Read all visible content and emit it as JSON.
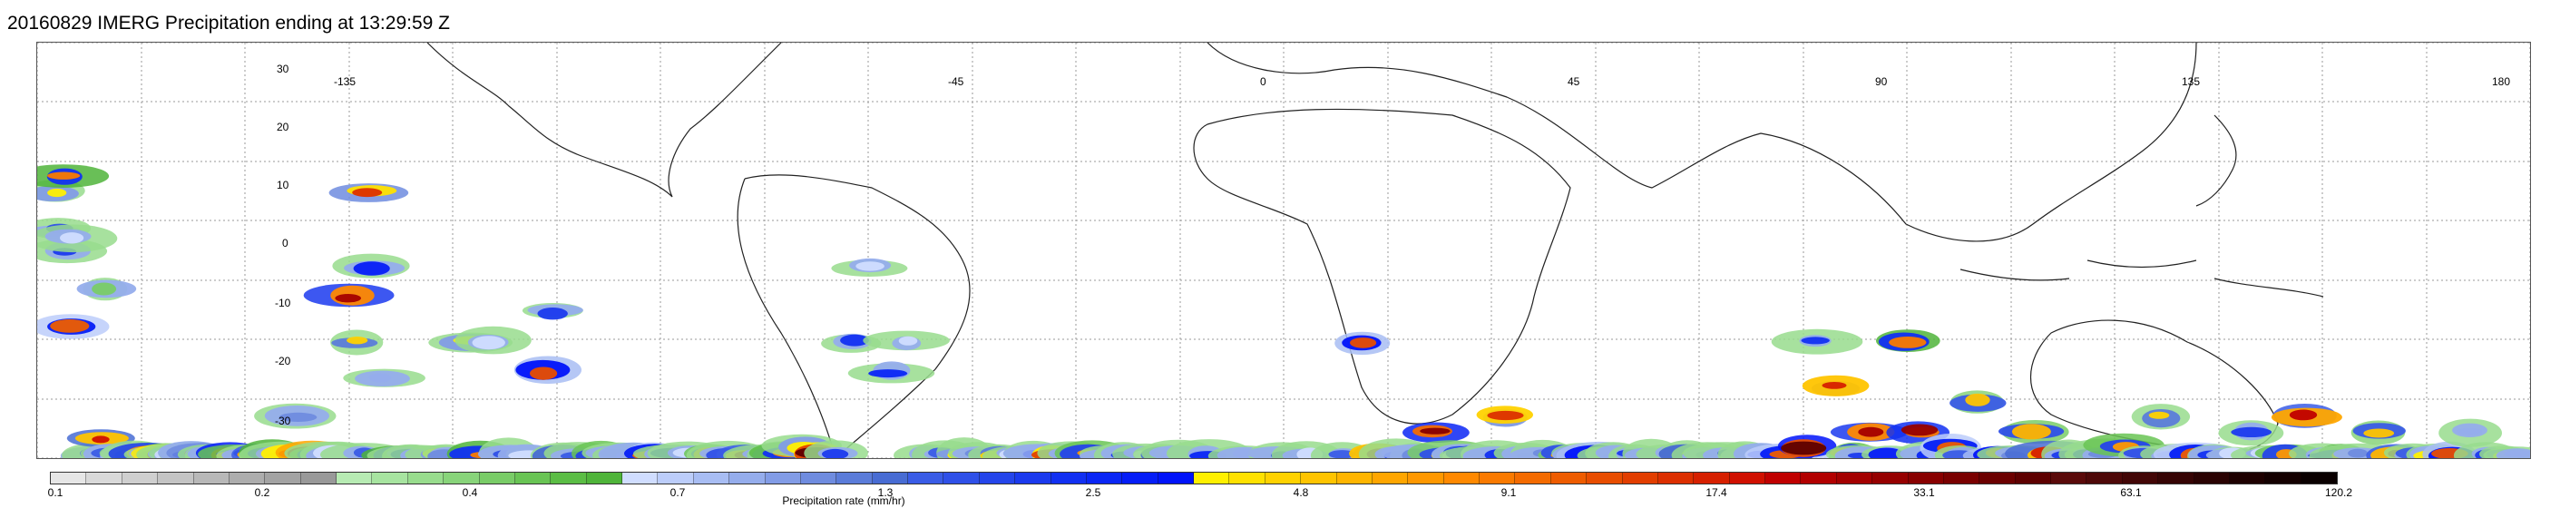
{
  "title": "20160829 IMERG Precipitation ending at 13:29:59 Z",
  "map": {
    "lon_labels": [
      "-135",
      "-45",
      "0",
      "45",
      "90",
      "135",
      "180"
    ],
    "lat_labels": [
      "30",
      "20",
      "10",
      "0",
      "-10",
      "-20",
      "-30"
    ],
    "precip_cells": [
      [
        20,
        20,
        1.4
      ],
      [
        22,
        25,
        0.8
      ],
      [
        30,
        18,
        2.5
      ],
      [
        33,
        28,
        0.9
      ],
      [
        38,
        38,
        3.0
      ],
      [
        37,
        26,
        0.4
      ],
      [
        60,
        56,
        0.9
      ],
      [
        63,
        60,
        1.6
      ],
      [
        73,
        53,
        4.5
      ],
      [
        75,
        33,
        0.3
      ],
      [
        80,
        70,
        0.7
      ],
      [
        105,
        55,
        1.2
      ],
      [
        110,
        60,
        3.2
      ],
      [
        115,
        65,
        0.5
      ],
      [
        120,
        58,
        6.0
      ],
      [
        128,
        62,
        1.5
      ],
      [
        130,
        68,
        0.3
      ],
      [
        140,
        60,
        2.1
      ],
      [
        145,
        65,
        9.0
      ],
      [
        152,
        64,
        1.3
      ],
      [
        160,
        70,
        0.6
      ],
      [
        168,
        58,
        2.8
      ],
      [
        172,
        66,
        0.9
      ],
      [
        180,
        62,
        4.0
      ],
      [
        190,
        66,
        1.0
      ],
      [
        200,
        70,
        0.4
      ],
      [
        210,
        62,
        8.0
      ],
      [
        220,
        70,
        2.2
      ],
      [
        232,
        68,
        1.1
      ],
      [
        245,
        72,
        5.0
      ],
      [
        255,
        65,
        0.8
      ],
      [
        262,
        60,
        2.6
      ],
      [
        270,
        74,
        1.0
      ],
      [
        280,
        56,
        3.4
      ],
      [
        286,
        50,
        0.6
      ],
      [
        300,
        55,
        14.0
      ],
      [
        310,
        62,
        2.4
      ],
      [
        318,
        58,
        0.9
      ],
      [
        330,
        66,
        0.4
      ],
      [
        345,
        34,
        6.0
      ],
      [
        352,
        40,
        1.6
      ],
      [
        360,
        62,
        0.7
      ],
      [
        366,
        20,
        3.8
      ],
      [
        370,
        30,
        1.2
      ],
      [
        380,
        45,
        0.5
      ],
      [
        400,
        63,
        2.5
      ],
      [
        410,
        66,
        1.0
      ],
      [
        420,
        64,
        0.5
      ],
      [
        440,
        66,
        1.4
      ],
      [
        450,
        70,
        0.6
      ],
      [
        480,
        40,
        1.4
      ],
      [
        490,
        66,
        2.5
      ],
      [
        500,
        40,
        0.4
      ],
      [
        520,
        64,
        0.8
      ],
      [
        540,
        70,
        0.4
      ],
      [
        560,
        44,
        3.2
      ],
      [
        570,
        36,
        0.9
      ],
      [
        580,
        70,
        1.7
      ],
      [
        600,
        66,
        0.7
      ],
      [
        620,
        64,
        2.2
      ],
      [
        640,
        66,
        1.2
      ],
      [
        660,
        62,
        0.5
      ],
      [
        680,
        66,
        2.9
      ],
      [
        700,
        62,
        1.0
      ],
      [
        720,
        68,
        0.4
      ],
      [
        740,
        64,
        2.2
      ],
      [
        760,
        60,
        0.8
      ],
      [
        780,
        62,
        5.0
      ],
      [
        800,
        66,
        1.1
      ],
      [
        820,
        72,
        0.6
      ],
      [
        830,
        62,
        2.4
      ],
      [
        845,
        54,
        1.4
      ],
      [
        860,
        72,
        9.0
      ],
      [
        880,
        74,
        0.9
      ],
      [
        900,
        40,
        1.0
      ],
      [
        920,
        30,
        0.4
      ],
      [
        940,
        44,
        1.1
      ],
      [
        960,
        40,
        0.4
      ],
      [
        980,
        70,
        0.5
      ],
      [
        1000,
        80,
        0.7
      ],
      [
        1020,
        66,
        1.4
      ],
      [
        1040,
        60,
        0.6
      ],
      [
        1060,
        70,
        1.6
      ],
      [
        1080,
        80,
        0.4
      ],
      [
        1100,
        70,
        1.1
      ],
      [
        1120,
        62,
        3.5
      ],
      [
        1140,
        66,
        1.0
      ],
      [
        1160,
        72,
        2.2
      ],
      [
        1180,
        60,
        0.5
      ],
      [
        1200,
        68,
        1.0
      ],
      [
        1220,
        74,
        0.4
      ],
      [
        1240,
        64,
        1.7
      ],
      [
        1260,
        70,
        0.5
      ],
      [
        1290,
        62,
        1.1
      ],
      [
        1330,
        66,
        0.5
      ],
      [
        1370,
        70,
        0.8
      ],
      [
        1400,
        60,
        0.4
      ],
      [
        1440,
        66,
        0.7
      ],
      [
        1460,
        40,
        3.2
      ],
      [
        1480,
        55,
        4.5
      ],
      [
        1500,
        62,
        1.2
      ],
      [
        1520,
        70,
        0.6
      ],
      [
        1540,
        52,
        7.0
      ],
      [
        1555,
        70,
        1.9
      ],
      [
        1570,
        74,
        0.8
      ],
      [
        1580,
        60,
        2.7
      ],
      [
        1595,
        66,
        0.6
      ],
      [
        1610,
        64,
        1.0
      ],
      [
        1620,
        50,
        3.9
      ],
      [
        1640,
        60,
        1.1
      ],
      [
        1660,
        74,
        0.6
      ],
      [
        1680,
        56,
        2.0
      ],
      [
        1700,
        64,
        0.6
      ],
      [
        1720,
        60,
        3.2
      ],
      [
        1735,
        72,
        1.1
      ],
      [
        1740,
        86,
        0.5
      ],
      [
        1760,
        66,
        0.9
      ],
      [
        1780,
        80,
        0.5
      ],
      [
        1800,
        70,
        0.8
      ],
      [
        1820,
        62,
        1.7
      ],
      [
        1840,
        70,
        0.6
      ],
      [
        1860,
        60,
        0.7
      ],
      [
        1880,
        80,
        0.5
      ],
      [
        1900,
        66,
        1.0
      ],
      [
        1930,
        60,
        3.0
      ],
      [
        1950,
        54,
        8.5
      ],
      [
        1960,
        40,
        1.0
      ],
      [
        1980,
        46,
        4.2
      ],
      [
        2000,
        60,
        2.2
      ],
      [
        2010,
        72,
        0.9
      ],
      [
        2020,
        52,
        6.0
      ],
      [
        2040,
        60,
        1.2
      ],
      [
        2060,
        40,
        2.5
      ],
      [
        2075,
        52,
        6.5
      ],
      [
        2090,
        66,
        1.1
      ],
      [
        2110,
        54,
        3.0
      ],
      [
        2120,
        72,
        0.7
      ],
      [
        2140,
        48,
        1.8
      ],
      [
        2160,
        60,
        3.1
      ],
      [
        2180,
        72,
        0.6
      ],
      [
        2200,
        52,
        1.9
      ],
      [
        2220,
        66,
        4.4
      ],
      [
        2240,
        80,
        0.9
      ],
      [
        2260,
        56,
        1.2
      ],
      [
        2280,
        70,
        0.6
      ],
      [
        2300,
        54,
        2.2
      ],
      [
        2320,
        66,
        0.8
      ],
      [
        2340,
        50,
        1.6
      ],
      [
        2360,
        60,
        0.6
      ],
      [
        2380,
        64,
        3.0
      ],
      [
        2400,
        58,
        1.0
      ],
      [
        2420,
        68,
        0.4
      ],
      [
        2440,
        52,
        0.9
      ],
      [
        2460,
        64,
        0.4
      ],
      [
        2480,
        60,
        2.2
      ],
      [
        2500,
        50,
        5.0
      ],
      [
        2520,
        70,
        1.0
      ],
      [
        2540,
        60,
        2.5
      ],
      [
        2560,
        72,
        0.6
      ],
      [
        2580,
        52,
        1.8
      ],
      [
        2600,
        66,
        4.8
      ],
      [
        2620,
        56,
        0.7
      ],
      [
        2640,
        70,
        1.3
      ],
      [
        2660,
        60,
        3.2
      ],
      [
        2680,
        52,
        0.5
      ],
      [
        2700,
        66,
        0.9
      ],
      [
        2720,
        60,
        1.5
      ],
      [
        2735,
        70,
        0.5
      ]
    ]
  },
  "colorbar": {
    "label": "Precipitation rate (mm/hr)",
    "tick_labels": [
      "0.1",
      "0.2",
      "0.4",
      "0.7",
      "1.3",
      "2.5",
      "4.8",
      "9.1",
      "17.4",
      "33.1",
      "63.1",
      "120.2"
    ],
    "colors": [
      "#e6e6e6",
      "#d9d9d9",
      "#cfcfcf",
      "#c4c4c4",
      "#b8b8b8",
      "#adadad",
      "#a3a3a3",
      "#999999",
      "#b7ebb3",
      "#a7e4a0",
      "#98dc8d",
      "#88d47a",
      "#79cc67",
      "#69c454",
      "#5bbd45",
      "#4fb43a",
      "#d0ddff",
      "#bccdfa",
      "#a8bdf3",
      "#95adec",
      "#829ce6",
      "#6f8cdf",
      "#5b7cd9",
      "#486cd3",
      "#3a5ce6",
      "#2f50e8",
      "#2545ea",
      "#1b3aee",
      "#1230f2",
      "#0a26f5",
      "#051df7",
      "#0013fa",
      "#fff000",
      "#ffe100",
      "#ffd200",
      "#ffc400",
      "#ffb500",
      "#ffa600",
      "#ff9800",
      "#ff8900",
      "#fa7a00",
      "#f46b00",
      "#ee5c00",
      "#e84d00",
      "#e23e00",
      "#dc2f00",
      "#d62000",
      "#d01000",
      "#c00000",
      "#b20000",
      "#a40000",
      "#960000",
      "#880000",
      "#7a0000",
      "#6c0000",
      "#5e0000",
      "#5a0a0a",
      "#4e0808",
      "#420606",
      "#360404",
      "#2a0202",
      "#1e0000",
      "#140000",
      "#0a0000"
    ],
    "scale": "log"
  }
}
